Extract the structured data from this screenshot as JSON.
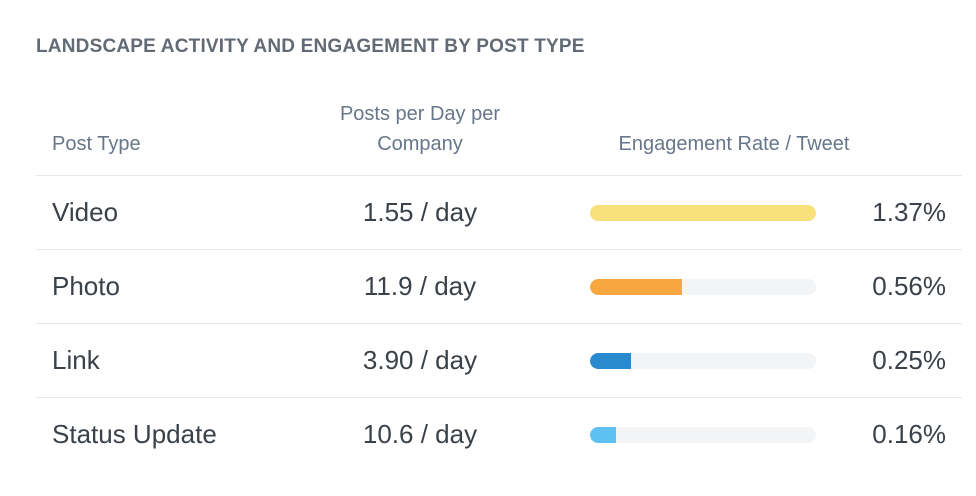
{
  "title": "LANDSCAPE ACTIVITY AND ENGAGEMENT BY POST TYPE",
  "headers": {
    "post_type": "Post Type",
    "posts_per_day_line1": "Posts per Day per",
    "posts_per_day_line2": "Company",
    "engagement": "Engagement Rate / Tweet"
  },
  "colors": {
    "video": "#f8e07a",
    "photo": "#f7a740",
    "link": "#2a8ad0",
    "status_update": "#5fc1f2"
  },
  "chart_data": {
    "type": "table",
    "title": "LANDSCAPE ACTIVITY AND ENGAGEMENT BY POST TYPE",
    "columns": [
      "Post Type",
      "Posts per Day per Company",
      "Engagement Rate / Tweet"
    ],
    "bar_max": 1.37,
    "rows": [
      {
        "type": "Video",
        "posts_per_day": 1.55,
        "posts_label": "1.55 / day",
        "engagement_rate": 1.37,
        "rate_label": "1.37%",
        "color": "#f8e07a"
      },
      {
        "type": "Photo",
        "posts_per_day": 11.9,
        "posts_label": "11.9 / day",
        "engagement_rate": 0.56,
        "rate_label": "0.56%",
        "color": "#f7a740"
      },
      {
        "type": "Link",
        "posts_per_day": 3.9,
        "posts_label": "3.90 / day",
        "engagement_rate": 0.25,
        "rate_label": "0.25%",
        "color": "#2a8ad0"
      },
      {
        "type": "Status Update",
        "posts_per_day": 10.6,
        "posts_label": "10.6 / day",
        "engagement_rate": 0.16,
        "rate_label": "0.16%",
        "color": "#5fc1f2"
      }
    ]
  }
}
